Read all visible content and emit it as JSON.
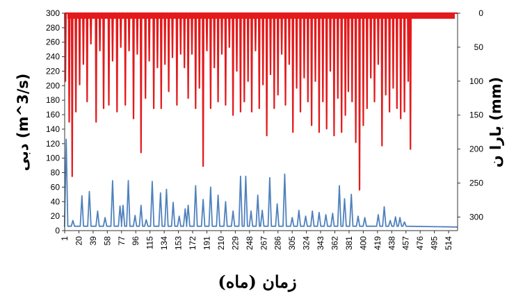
{
  "chart_data": {
    "type": "line",
    "title": "",
    "xlabel": "زمان (ماه)",
    "ylabel_left": "دبی (m^3/s)",
    "ylabel_right": "بارا ن (mm)",
    "x_ticks": [
      1,
      20,
      39,
      58,
      77,
      96,
      115,
      134,
      153,
      172,
      191,
      210,
      229,
      248,
      267,
      286,
      305,
      324,
      343,
      362,
      381,
      400,
      419,
      438,
      457,
      476,
      495,
      514
    ],
    "y_left_ticks": [
      0,
      20,
      40,
      60,
      80,
      100,
      120,
      140,
      160,
      180,
      200,
      220,
      240,
      260,
      280,
      300
    ],
    "y_right_ticks": [
      0,
      50,
      100,
      150,
      200,
      250,
      300
    ],
    "x_range": [
      1,
      526
    ],
    "y_left_range": [
      0,
      300
    ],
    "y_right_range": [
      0,
      320
    ],
    "y_right_inverted": true,
    "grid": false,
    "legend": "none",
    "colors": {
      "discharge": "#4f81bd",
      "rainfall": "#e31a1c"
    },
    "series": [
      {
        "axis": "left",
        "style": "line",
        "color": "#4f81bd",
        "peaks": [
          [
            3,
            126
          ],
          [
            12,
            14
          ],
          [
            24,
            48
          ],
          [
            34,
            54
          ],
          [
            45,
            27
          ],
          [
            55,
            18
          ],
          [
            65,
            69
          ],
          [
            75,
            34
          ],
          [
            79,
            35
          ],
          [
            86,
            69
          ],
          [
            95,
            21
          ],
          [
            103,
            35
          ],
          [
            110,
            15
          ],
          [
            118,
            68
          ],
          [
            129,
            52
          ],
          [
            137,
            57
          ],
          [
            146,
            39
          ],
          [
            154,
            20
          ],
          [
            162,
            30
          ],
          [
            166,
            35
          ],
          [
            176,
            62
          ],
          [
            186,
            43
          ],
          [
            196,
            60
          ],
          [
            206,
            49
          ],
          [
            216,
            40
          ],
          [
            226,
            27
          ],
          [
            236,
            75
          ],
          [
            243,
            75
          ],
          [
            250,
            27
          ],
          [
            259,
            49
          ],
          [
            265,
            28
          ],
          [
            275,
            73
          ],
          [
            285,
            37
          ],
          [
            295,
            78
          ],
          [
            305,
            18
          ],
          [
            314,
            28
          ],
          [
            323,
            20
          ],
          [
            332,
            27
          ],
          [
            341,
            25
          ],
          [
            350,
            22
          ],
          [
            359,
            24
          ],
          [
            368,
            62
          ],
          [
            375,
            44
          ],
          [
            384,
            50
          ],
          [
            393,
            20
          ],
          [
            402,
            18
          ],
          [
            411,
            6
          ],
          [
            420,
            22
          ],
          [
            428,
            33
          ],
          [
            436,
            14
          ],
          [
            443,
            19
          ],
          [
            449,
            18
          ],
          [
            455,
            12
          ]
        ]
      },
      {
        "axis": "right",
        "style": "bars-from-top",
        "color": "#e31a1c",
        "spikes": [
          [
            2,
            100
          ],
          [
            7,
            160
          ],
          [
            11,
            240
          ],
          [
            16,
            145
          ],
          [
            21,
            105
          ],
          [
            26,
            75
          ],
          [
            31,
            130
          ],
          [
            36,
            45
          ],
          [
            43,
            160
          ],
          [
            48,
            55
          ],
          [
            53,
            140
          ],
          [
            60,
            135
          ],
          [
            65,
            70
          ],
          [
            71,
            145
          ],
          [
            76,
            50
          ],
          [
            82,
            135
          ],
          [
            87,
            55
          ],
          [
            93,
            155
          ],
          [
            98,
            60
          ],
          [
            103,
            205
          ],
          [
            109,
            125
          ],
          [
            114,
            70
          ],
          [
            120,
            140
          ],
          [
            125,
            80
          ],
          [
            130,
            140
          ],
          [
            135,
            75
          ],
          [
            140,
            115
          ],
          [
            145,
            65
          ],
          [
            151,
            135
          ],
          [
            156,
            60
          ],
          [
            161,
            80
          ],
          [
            166,
            125
          ],
          [
            171,
            60
          ],
          [
            176,
            140
          ],
          [
            181,
            110
          ],
          [
            186,
            225
          ],
          [
            191,
            55
          ],
          [
            196,
            140
          ],
          [
            201,
            80
          ],
          [
            206,
            130
          ],
          [
            211,
            60
          ],
          [
            216,
            135
          ],
          [
            221,
            50
          ],
          [
            226,
            150
          ],
          [
            231,
            85
          ],
          [
            236,
            145
          ],
          [
            241,
            130
          ],
          [
            246,
            100
          ],
          [
            251,
            145
          ],
          [
            256,
            55
          ],
          [
            261,
            140
          ],
          [
            266,
            105
          ],
          [
            271,
            180
          ],
          [
            276,
            90
          ],
          [
            281,
            140
          ],
          [
            286,
            120
          ],
          [
            291,
            60
          ],
          [
            296,
            135
          ],
          [
            301,
            75
          ],
          [
            306,
            175
          ],
          [
            311,
            110
          ],
          [
            316,
            145
          ],
          [
            321,
            95
          ],
          [
            326,
            130
          ],
          [
            331,
            165
          ],
          [
            336,
            100
          ],
          [
            341,
            175
          ],
          [
            346,
            130
          ],
          [
            351,
            170
          ],
          [
            356,
            85
          ],
          [
            361,
            180
          ],
          [
            366,
            125
          ],
          [
            371,
            175
          ],
          [
            376,
            150
          ],
          [
            380,
            115
          ],
          [
            385,
            130
          ],
          [
            390,
            190
          ],
          [
            395,
            260
          ],
          [
            400,
            165
          ],
          [
            405,
            140
          ],
          [
            410,
            95
          ],
          [
            415,
            130
          ],
          [
            420,
            75
          ],
          [
            425,
            195
          ],
          [
            430,
            120
          ],
          [
            435,
            145
          ],
          [
            440,
            110
          ],
          [
            445,
            140
          ],
          [
            450,
            155
          ],
          [
            455,
            145
          ],
          [
            460,
            100
          ],
          [
            463,
            200
          ]
        ]
      }
    ]
  }
}
